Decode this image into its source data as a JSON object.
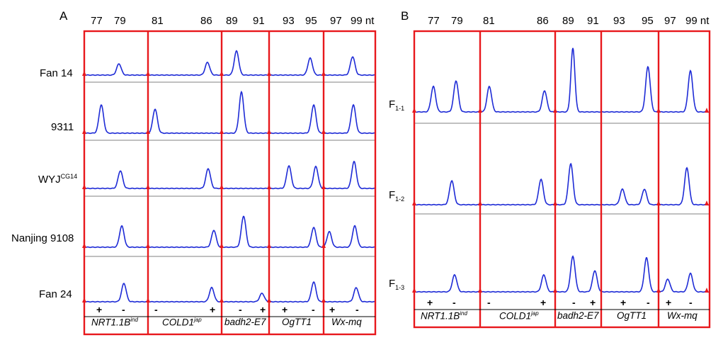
{
  "panel_a": {
    "letter": "A",
    "sizes": [
      "77",
      "79",
      "81",
      "86",
      "89",
      "91",
      "93",
      "95",
      "97",
      "99 nt"
    ],
    "samples": [
      {
        "main": "Fan 14",
        "sup": ""
      },
      {
        "main": "9311",
        "sup": ""
      },
      {
        "main": "WYJ",
        "sup": "CG14"
      },
      {
        "main": "Nanjing 9108",
        "sup": ""
      },
      {
        "main": "Fan 24",
        "sup": ""
      }
    ],
    "signs": [
      "+",
      "-",
      "-",
      "+",
      "-",
      "+",
      "+",
      "-",
      "+",
      "-"
    ],
    "markers": [
      {
        "main": "NRT1.1B",
        "sup": "ind"
      },
      {
        "main": "COLD1",
        "sup": "jap"
      },
      {
        "main": "badh2-E7",
        "sup": ""
      },
      {
        "main": "OgTT1",
        "sup": ""
      },
      {
        "main": "Wx-mq",
        "sup": ""
      }
    ]
  },
  "panel_b": {
    "letter": "B",
    "sizes": [
      "77",
      "79",
      "81",
      "86",
      "89",
      "91",
      "93",
      "95",
      "97",
      "99 nt"
    ],
    "samples": [
      {
        "main": "F",
        "sub": "1-1"
      },
      {
        "main": "F",
        "sub": "1-2"
      },
      {
        "main": "F",
        "sub": "1-3"
      }
    ],
    "signs": [
      "+",
      "-",
      "-",
      "+",
      "-",
      "+",
      "+",
      "-",
      "+",
      "-"
    ],
    "markers": [
      {
        "main": "NRT1.1B",
        "sup": "ind"
      },
      {
        "main": "COLD1",
        "sup": "jap"
      },
      {
        "main": "badh2-E7",
        "sup": ""
      },
      {
        "main": "OgTT1",
        "sup": ""
      },
      {
        "main": "Wx-mq",
        "sup": ""
      }
    ]
  },
  "colors": {
    "frame": "#e8181c",
    "trace": "#1e2bd6",
    "baseline": "#9a9a9a"
  }
}
